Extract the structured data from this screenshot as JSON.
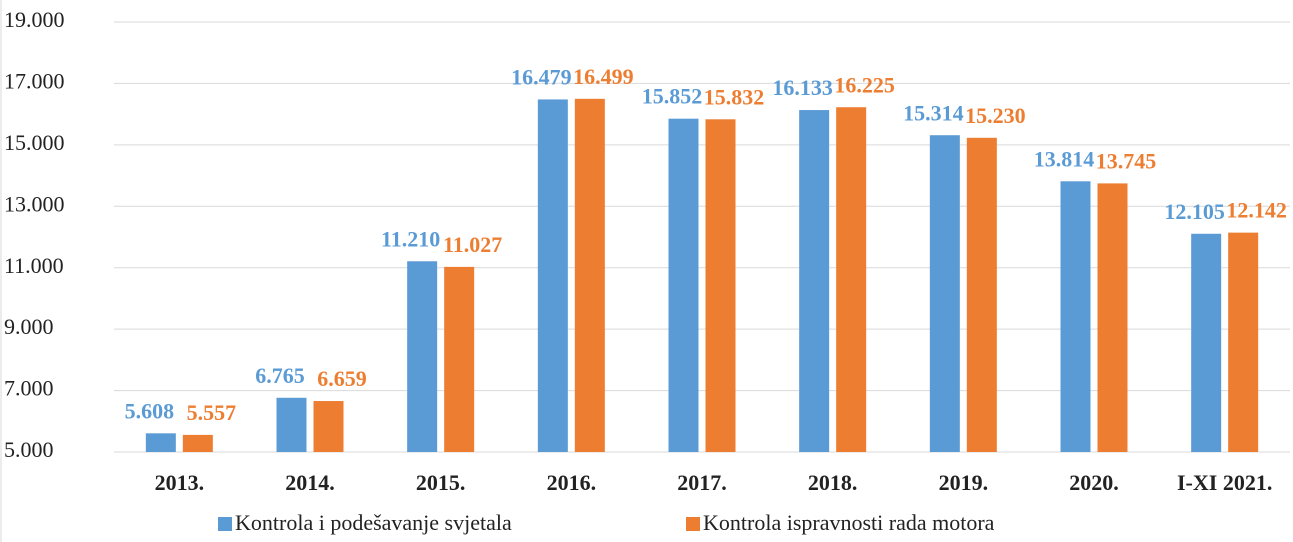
{
  "chart_data": {
    "type": "bar",
    "categories": [
      "2013.",
      "2014.",
      "2015.",
      "2016.",
      "2017.",
      "2018.",
      "2019.",
      "2020.",
      "I-XI 2021."
    ],
    "series": [
      {
        "name": "Kontrola i podešavanje svjetala",
        "color": "#5b9bd5",
        "values": [
          5608,
          6765,
          11210,
          16479,
          15852,
          16133,
          15314,
          13814,
          12105
        ],
        "value_labels": [
          "5.608",
          "6.765",
          "11.210",
          "16.479",
          "15.852",
          "16.133",
          "15.314",
          "13.814",
          "12.105"
        ]
      },
      {
        "name": "Kontrola ispravnosti rada motora",
        "color": "#ed7d31",
        "values": [
          5557,
          6659,
          11027,
          16499,
          15832,
          16225,
          15230,
          13745,
          12142
        ],
        "value_labels": [
          "5.557",
          "6.659",
          "11.027",
          "16.499",
          "15.832",
          "16.225",
          "15.230",
          "13.745",
          "12.142"
        ]
      }
    ],
    "ylim": [
      5000,
      19000
    ],
    "yticks": [
      {
        "value": 5000,
        "label": "5.000"
      },
      {
        "value": 7000,
        "label": "7.000"
      },
      {
        "value": 9000,
        "label": "9.000"
      },
      {
        "value": 11000,
        "label": "11.000"
      },
      {
        "value": 13000,
        "label": "13.000"
      },
      {
        "value": 15000,
        "label": "15.000"
      },
      {
        "value": 17000,
        "label": "17.000"
      },
      {
        "value": 19000,
        "label": "19.000"
      }
    ],
    "grid": true,
    "legend": "bottom"
  }
}
